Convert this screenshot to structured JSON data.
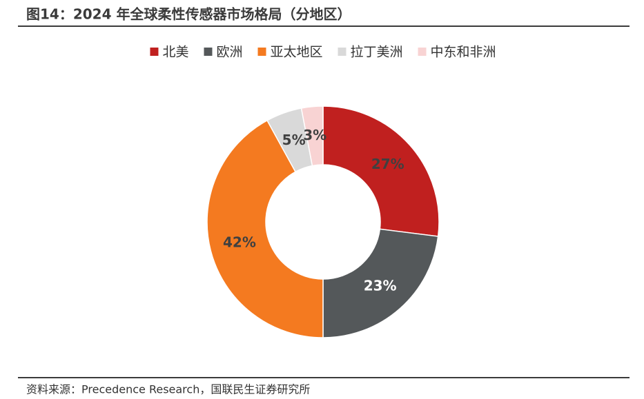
{
  "chart_data": {
    "type": "donut",
    "title": "图14：2024 年全球柔性传感器市场格局（分地区）",
    "categories": [
      "北美",
      "欧洲",
      "亚太地区",
      "拉丁美洲",
      "中东和非洲"
    ],
    "values": [
      27,
      23,
      42,
      5,
      3
    ],
    "value_labels": [
      "27%",
      "23%",
      "42%",
      "5%",
      "3%"
    ],
    "colors": [
      "#c0201f",
      "#54585a",
      "#f47a20",
      "#d9d9d9",
      "#f8d3d3"
    ],
    "value_label_colors": [
      "#404040",
      "#ffffff",
      "#404040",
      "#404040",
      "#404040"
    ],
    "legend": "top",
    "source": "资料来源：Precedence Research，国联民生证券研究所"
  }
}
